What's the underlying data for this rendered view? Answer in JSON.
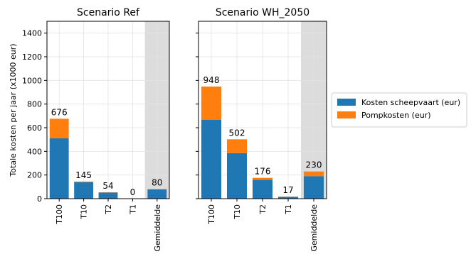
{
  "chart_data": {
    "type": "bar",
    "stacked": true,
    "ylabel": "Totale kosten per jaar (x1000 eur)",
    "ylim": [
      0,
      1500
    ],
    "yticks": [
      0,
      200,
      400,
      600,
      800,
      1000,
      1200,
      1400
    ],
    "grid": true,
    "shaded_category": "Gemiddelde",
    "legend": {
      "placement": "right",
      "entries": [
        {
          "label": "Kosten scheepvaart (eur)",
          "color": "#1f77b4"
        },
        {
          "label": "Pompkosten (eur)",
          "color": "#ff7f0e"
        }
      ]
    },
    "panels": [
      {
        "title": "Scenario Ref",
        "categories": [
          "T100",
          "T10",
          "T2",
          "T1",
          "Gemiddelde"
        ],
        "series": [
          {
            "name": "Kosten scheepvaart (eur)",
            "color": "#1f77b4",
            "values": [
              510,
              140,
              52,
              0,
              78
            ]
          },
          {
            "name": "Pompkosten (eur)",
            "color": "#ff7f0e",
            "values": [
              166,
              5,
              2,
              0,
              2
            ]
          }
        ],
        "totals": [
          "676",
          "145",
          "54",
          "0",
          "80"
        ]
      },
      {
        "title": "Scenario WH_2050",
        "categories": [
          "T100",
          "T10",
          "T2",
          "T1",
          "Gemiddelde"
        ],
        "series": [
          {
            "name": "Kosten scheepvaart (eur)",
            "color": "#1f77b4",
            "values": [
              668,
              385,
              160,
              15,
              190
            ]
          },
          {
            "name": "Pompkosten (eur)",
            "color": "#ff7f0e",
            "values": [
              280,
              117,
              16,
              2,
              40
            ]
          }
        ],
        "totals": [
          "948",
          "502",
          "176",
          "17",
          "230"
        ]
      }
    ]
  }
}
